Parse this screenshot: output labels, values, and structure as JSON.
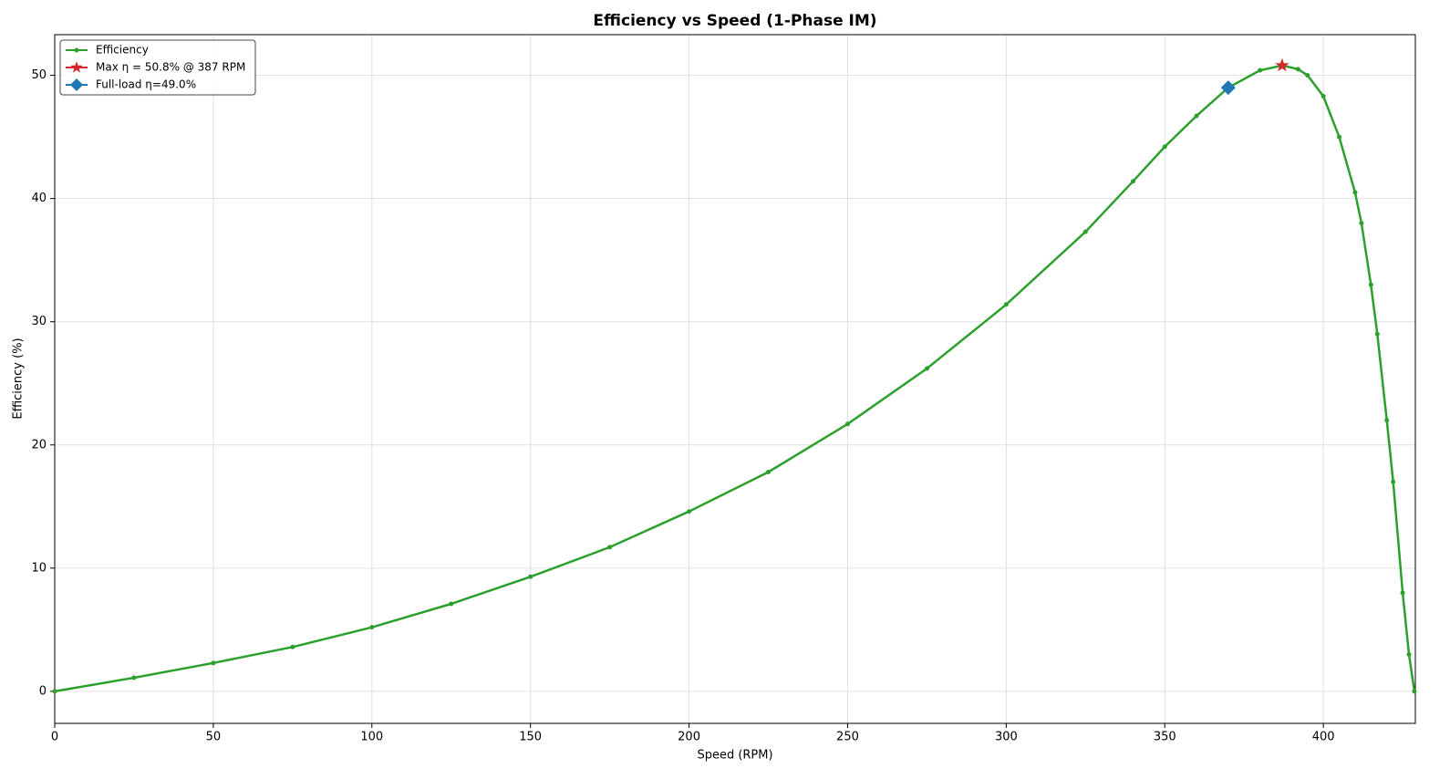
{
  "chart_data": {
    "type": "line",
    "title": "Efficiency vs Speed  (1-Phase IM)",
    "x_label": "Speed (RPM)",
    "y_label": "Efficiency (%)",
    "xlim": [
      0,
      429
    ],
    "ylim": [
      -2.6,
      53.3
    ],
    "xticks": [
      0,
      50,
      100,
      150,
      200,
      250,
      300,
      350,
      400
    ],
    "yticks": [
      0,
      10,
      20,
      30,
      40,
      50
    ],
    "grid": true,
    "legend": "upper left",
    "series": [
      {
        "name": "Efficiency",
        "color": "#2ca02c",
        "marker": "o",
        "x": [
          0,
          25,
          50,
          75,
          100,
          125,
          150,
          175,
          200,
          225,
          250,
          275,
          300,
          325,
          340,
          350,
          360,
          370,
          380,
          387,
          392,
          395,
          400,
          405,
          410,
          412,
          415,
          417,
          420,
          422,
          425,
          427,
          428.7
        ],
        "values": [
          0,
          1.1,
          2.3,
          3.6,
          5.2,
          7.1,
          9.3,
          11.7,
          14.6,
          17.8,
          21.7,
          26.2,
          31.4,
          37.3,
          41.4,
          44.2,
          46.7,
          49.0,
          50.4,
          50.8,
          50.5,
          50.0,
          48.3,
          45.0,
          40.5,
          38.0,
          33.0,
          29.0,
          22.0,
          17.0,
          8.0,
          3.0,
          0
        ]
      },
      {
        "name": "Max η = 50.8% @ 387 RPM",
        "color": "#d62728",
        "marker": "*",
        "x": [
          387
        ],
        "values": [
          50.8
        ]
      },
      {
        "name": "Full-load  η=49.0%",
        "color": "#1f77b4",
        "marker": "D",
        "x": [
          370
        ],
        "values": [
          49.0
        ]
      }
    ]
  }
}
